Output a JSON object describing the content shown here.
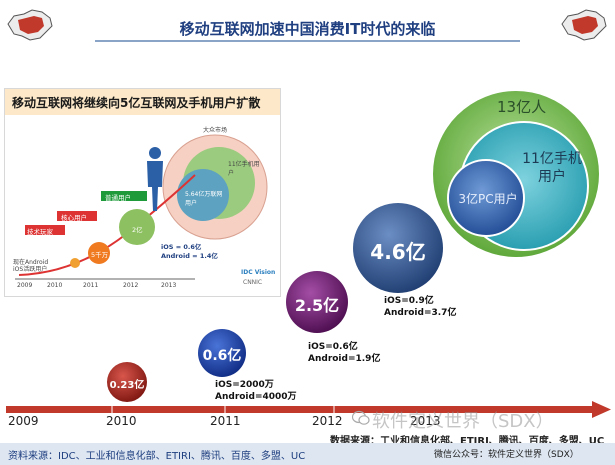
{
  "slide": {
    "title": "移动互联网加速中国消费IT时代的来临",
    "inset": {
      "title": "移动互联网将继续向5亿互联网及手机用户扩散",
      "bubble_outer": "大众市场",
      "bubble_mid": "11亿手机用户",
      "bubble_inner": "5.64亿万联网用户",
      "steps": [
        "技术玩家",
        "核心用户",
        "普通用户"
      ],
      "small_bubbles": [
        "5千万",
        "2亿"
      ],
      "stats_line1": "iOS = 0.6亿",
      "stats_line2": "Android = 1.4亿",
      "note_line1": "现在Android",
      "note_line2": "iOS活跃用户",
      "years": [
        "2009",
        "2010",
        "2011",
        "2012",
        "2013"
      ],
      "logo": "IDC Vision",
      "logo_sub": "CNNIC"
    },
    "venn": {
      "outer": "13亿人",
      "middle_line1": "11亿手机",
      "middle_line2": "用户",
      "inner": "3亿PC用户"
    },
    "bubbles": [
      {
        "value": "0.23亿"
      },
      {
        "value": "0.6亿",
        "ios": "iOS=2000万",
        "android": "Android=4000万"
      },
      {
        "value": "2.5亿",
        "ios": "iOS=0.6亿",
        "android": "Android=1.9亿"
      },
      {
        "value": "4.6亿",
        "ios": "iOS=0.9亿",
        "android": "Android=3.7亿"
      }
    ],
    "timeline_years": [
      "2009",
      "2010",
      "2011",
      "2012",
      "2013"
    ],
    "source_overlap": "数据来源：工业和信息化部、ETIRI、腾讯、百度、多盟、UC",
    "watermark": "软件定义世界（SDX）",
    "footer_left": "资料来源：IDC、工业和信息化部、ETIRI、腾讯、百度、多盟、UC",
    "footer_right": "微信公众号：软件定义世界（SDX）"
  },
  "colors": {
    "title_blue": "#1f3f80",
    "bubble_red": "#a0231c",
    "bubble_blue": "#1c3fa8",
    "bubble_purple": "#6a1a6b",
    "bubble_steel": "#2c4f8a",
    "venn_outer": "#72b84a",
    "venn_middle": "#3aa8b8",
    "venn_inner": "#2f5ea6",
    "arrow_red": "#c0392b"
  },
  "icons": [
    "china-map-icon",
    "person-silhouette-icon",
    "wechat-icon"
  ]
}
